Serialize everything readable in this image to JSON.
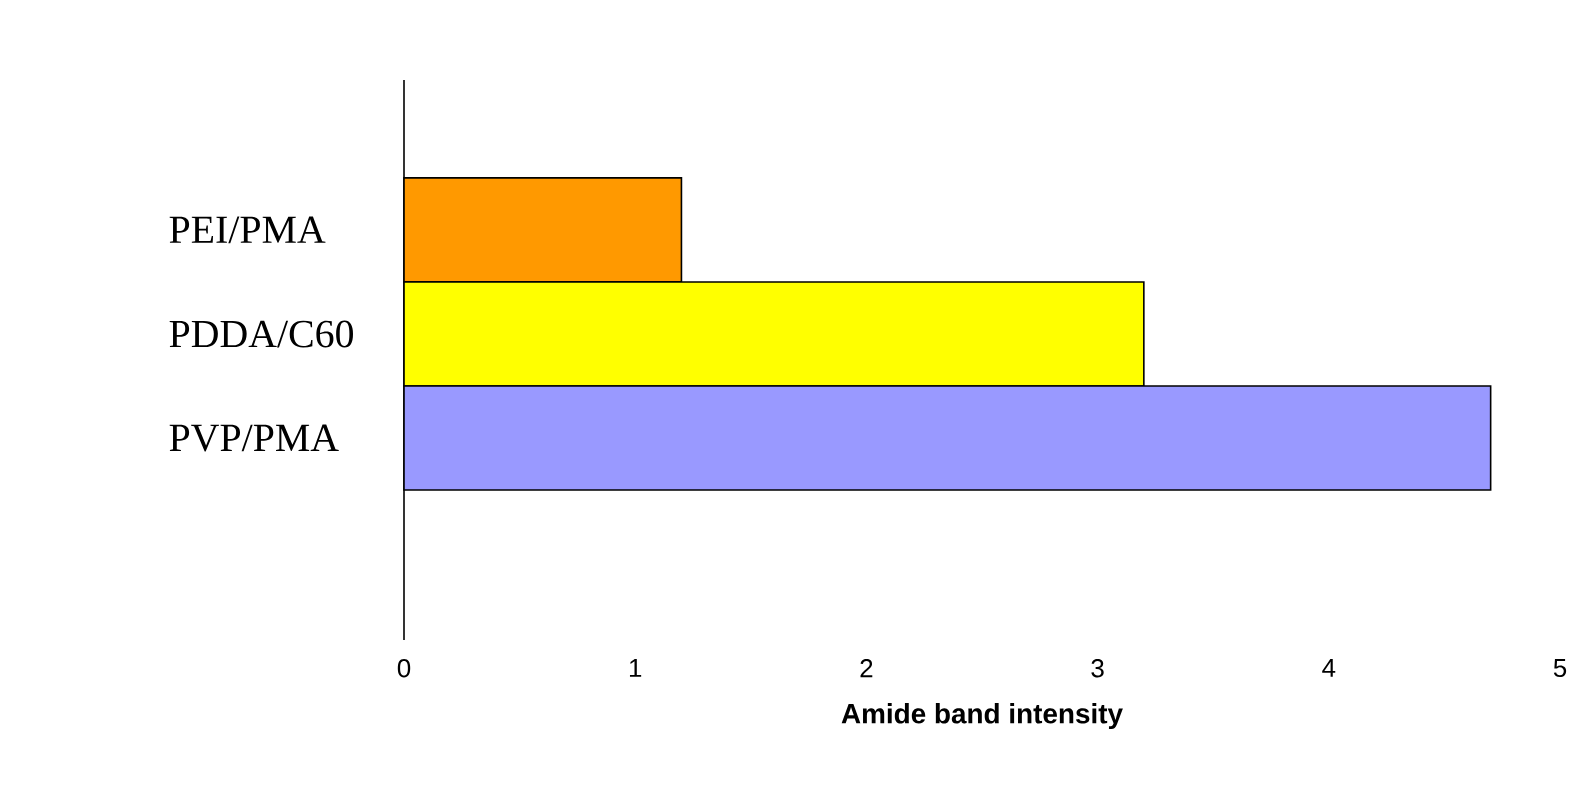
{
  "chart_data": {
    "type": "bar",
    "orientation": "horizontal",
    "xlabel": "Amide band intensity",
    "categories": [
      "PEI/PMA",
      "PDDA/C60",
      "PVP/PMA"
    ],
    "values": [
      1.2,
      3.2,
      4.7
    ],
    "colors": [
      "#ff9900",
      "#ffff00",
      "#9999ff"
    ],
    "xlim": [
      0,
      5
    ],
    "xticks": [
      0,
      1,
      2,
      3,
      4,
      5
    ]
  }
}
